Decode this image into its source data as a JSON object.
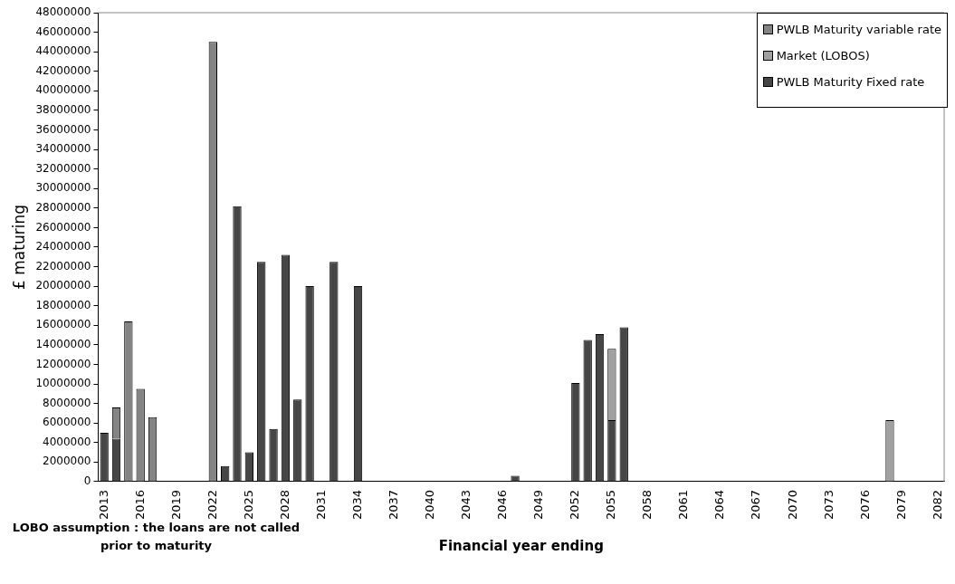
{
  "chart_data": {
    "type": "bar",
    "stacked": true,
    "xlabel": "Financial year ending",
    "ylabel": "£ maturing",
    "annotations": [
      "LOBO assumption : the loans are not called prior to maturity"
    ],
    "categories": [
      "2013",
      null,
      null,
      "2016",
      null,
      null,
      "2019",
      null,
      null,
      "2022",
      null,
      null,
      "2025",
      null,
      null,
      "2028",
      null,
      null,
      "2031",
      null,
      null,
      "2034",
      null,
      null,
      "2037",
      null,
      null,
      "2040",
      null,
      null,
      "2043",
      null,
      null,
      "2046",
      null,
      null,
      "2049",
      null,
      null,
      "2052",
      null,
      null,
      "2055",
      null,
      null,
      "2058",
      null,
      null,
      "2061",
      null,
      null,
      "2064",
      null,
      null,
      "2067",
      null,
      null,
      "2070",
      null,
      null,
      "2073",
      null,
      null,
      "2076",
      null,
      null,
      "2079",
      null,
      null,
      "2082"
    ],
    "series": [
      {
        "name": "PWLB Maturity Fixed rate",
        "color": "#464646",
        "values": [
          5000000,
          4400000,
          null,
          null,
          null,
          null,
          null,
          null,
          null,
          null,
          1600000,
          28200000,
          3000000,
          22500000,
          5400000,
          23200000,
          8400000,
          20000000,
          null,
          22500000,
          null,
          20000000,
          null,
          null,
          null,
          null,
          null,
          null,
          null,
          null,
          null,
          null,
          null,
          null,
          600000,
          null,
          null,
          null,
          null,
          10100000,
          14500000,
          15100000,
          6300000,
          15800000,
          null,
          null,
          null,
          null,
          null,
          null,
          null,
          null,
          null,
          null,
          null,
          null,
          null,
          null,
          null,
          null,
          null,
          null,
          null,
          null,
          null,
          null,
          null,
          null,
          null,
          null
        ]
      },
      {
        "name": "Market (LOBOS)",
        "color": "#a0a0a0",
        "values": [
          null,
          null,
          null,
          null,
          null,
          null,
          null,
          null,
          null,
          null,
          null,
          null,
          null,
          null,
          null,
          null,
          null,
          null,
          null,
          null,
          null,
          null,
          null,
          null,
          null,
          null,
          null,
          null,
          null,
          null,
          null,
          null,
          null,
          null,
          null,
          null,
          null,
          null,
          null,
          null,
          null,
          null,
          7300000,
          null,
          null,
          null,
          null,
          null,
          null,
          null,
          null,
          null,
          null,
          null,
          null,
          null,
          null,
          null,
          null,
          null,
          null,
          null,
          null,
          null,
          null,
          6300000,
          null,
          null,
          null,
          null
        ]
      },
      {
        "name": "PWLB Maturity variable rate",
        "color": "#848484",
        "values": [
          null,
          3200000,
          16400000,
          9500000,
          6600000,
          null,
          null,
          null,
          null,
          45000000,
          null,
          null,
          null,
          null,
          null,
          null,
          null,
          null,
          null,
          null,
          null,
          null,
          null,
          null,
          null,
          null,
          null,
          null,
          null,
          null,
          null,
          null,
          null,
          null,
          null,
          null,
          null,
          null,
          null,
          null,
          null,
          null,
          null,
          null,
          null,
          null,
          null,
          null,
          null,
          null,
          null,
          null,
          null,
          null,
          null,
          null,
          null,
          null,
          null,
          null,
          null,
          null,
          null,
          null,
          null,
          null,
          null,
          null,
          null,
          null
        ]
      }
    ],
    "ylim": [
      0,
      48000000
    ],
    "yticks": [
      0,
      2000000,
      4000000,
      6000000,
      8000000,
      10000000,
      12000000,
      14000000,
      16000000,
      18000000,
      20000000,
      22000000,
      24000000,
      26000000,
      28000000,
      30000000,
      32000000,
      34000000,
      36000000,
      38000000,
      40000000,
      42000000,
      44000000,
      46000000,
      48000000
    ],
    "grid": false,
    "legend": "top right"
  }
}
